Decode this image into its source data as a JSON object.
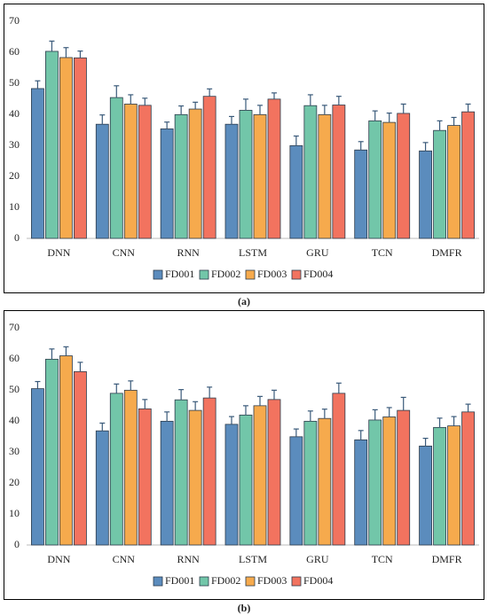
{
  "chart_data": [
    {
      "type": "bar",
      "panel_label": "(a)",
      "categories": [
        "DNN",
        "CNN",
        "RNN",
        "LSTM",
        "GRU",
        "TCN",
        "DMFR"
      ],
      "series": [
        {
          "name": "FD001",
          "color": "#5b8cbd",
          "values": [
            48.3,
            36.8,
            35.3,
            36.8,
            29.9,
            28.5,
            28.2
          ],
          "errors": [
            2.5,
            3,
            2.2,
            2.5,
            3.1,
            2.7,
            2.7
          ]
        },
        {
          "name": "FD002",
          "color": "#72c6a9",
          "values": [
            60.3,
            45.4,
            39.9,
            41.3,
            42.8,
            37.9,
            34.8
          ],
          "errors": [
            3.3,
            3.8,
            2.8,
            3.6,
            3.5,
            3.2,
            3.1
          ]
        },
        {
          "name": "FD003",
          "color": "#f6aa4d",
          "values": [
            58.3,
            43.3,
            41.7,
            39.9,
            39.9,
            37.4,
            36.4
          ],
          "errors": [
            3.2,
            3,
            2.2,
            3,
            3,
            3,
            2.6
          ]
        },
        {
          "name": "FD004",
          "color": "#f2735f",
          "values": [
            58.2,
            42.9,
            45.8,
            44.9,
            43,
            40.3,
            40.8
          ],
          "errors": [
            2.2,
            2.3,
            2.4,
            2,
            2.8,
            3,
            2.5
          ]
        }
      ],
      "ylim": [
        0,
        70
      ],
      "yticks": [
        0,
        10,
        20,
        30,
        40,
        50,
        60,
        70
      ],
      "grid": false,
      "legend": "bottom"
    },
    {
      "type": "bar",
      "panel_label": "(b)",
      "categories": [
        "DNN",
        "CNN",
        "RNN",
        "LSTM",
        "GRU",
        "TCN",
        "DMFR"
      ],
      "series": [
        {
          "name": "FD001",
          "color": "#5b8cbd",
          "values": [
            50.4,
            36.8,
            39.9,
            38.9,
            34.9,
            33.9,
            31.9
          ],
          "errors": [
            2.3,
            2.5,
            3,
            2.5,
            2.5,
            3,
            2.5
          ]
        },
        {
          "name": "FD002",
          "color": "#72c6a9",
          "values": [
            59.9,
            48.9,
            46.8,
            41.9,
            39.9,
            40.3,
            37.9
          ],
          "errors": [
            3.3,
            3,
            3.3,
            3,
            3.3,
            3.3,
            3
          ]
        },
        {
          "name": "FD003",
          "color": "#f6aa4d",
          "values": [
            61,
            49.9,
            43.4,
            44.9,
            40.8,
            41.3,
            38.4
          ],
          "errors": [
            2.9,
            3,
            2.8,
            3,
            3,
            3,
            3
          ]
        },
        {
          "name": "FD004",
          "color": "#f2735f",
          "values": [
            55.9,
            43.9,
            47.4,
            46.9,
            48.9,
            43.4,
            42.9
          ],
          "errors": [
            3,
            3,
            3.5,
            3,
            3.3,
            4.2,
            2.5
          ]
        }
      ],
      "ylim": [
        0,
        70
      ],
      "yticks": [
        0,
        10,
        20,
        30,
        40,
        50,
        60,
        70
      ],
      "grid": false,
      "legend": "bottom"
    }
  ]
}
